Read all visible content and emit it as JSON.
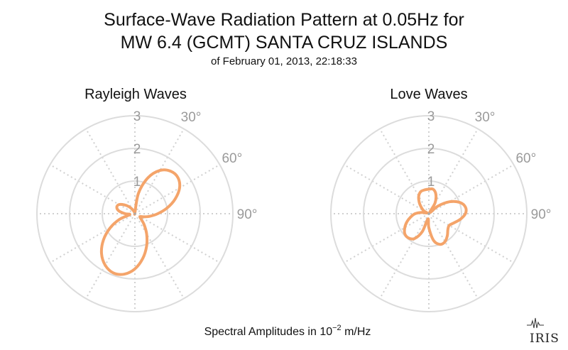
{
  "title_line1": "Surface-Wave Radiation Pattern at 0.05Hz for",
  "title_line2": "MW 6.4 (GCMT) SANTA CRUZ ISLANDS",
  "subtitle": "of February 01, 2013, 22:18:33",
  "footer": {
    "prefix": "Spectral Amplitudes in 10",
    "exponent": "−2",
    "suffix": " m/Hz"
  },
  "logo": "IRIS",
  "chart_data": [
    {
      "type": "polar-line",
      "title": "Rayleigh Waves",
      "r_ticks": [
        "1",
        "2",
        "3"
      ],
      "r_max": 3,
      "angle_labels": [
        "30°",
        "60°",
        "90°"
      ],
      "azimuth_deg": [
        0,
        10,
        20,
        30,
        40,
        50,
        60,
        70,
        80,
        90,
        100,
        110,
        120,
        130,
        140,
        150,
        160,
        170,
        180,
        190,
        200,
        210,
        220,
        230,
        240,
        250,
        260,
        270,
        280,
        290,
        300,
        310,
        320,
        330,
        340,
        350
      ],
      "amplitude": [
        0.03,
        0.64,
        1.17,
        1.53,
        1.7,
        1.72,
        1.58,
        1.31,
        1.0,
        0.7,
        0.46,
        0.28,
        0.18,
        0.24,
        0.44,
        0.72,
        1.05,
        1.39,
        1.69,
        1.88,
        1.93,
        1.82,
        1.59,
        1.26,
        0.88,
        0.5,
        0.16,
        0.3,
        0.5,
        0.59,
        0.56,
        0.42,
        0.28,
        0.15,
        0.06,
        0.02
      ],
      "color": "#f4a46a"
    },
    {
      "type": "polar-line",
      "title": "Love Waves",
      "r_ticks": [
        "1",
        "2",
        "3"
      ],
      "r_max": 3,
      "angle_labels": [
        "30°",
        "60°",
        "90°"
      ],
      "azimuth_deg": [
        0,
        10,
        20,
        30,
        40,
        50,
        60,
        70,
        80,
        90,
        100,
        110,
        120,
        130,
        140,
        150,
        160,
        170,
        180,
        190,
        200,
        210,
        220,
        230,
        240,
        250,
        260,
        270,
        280,
        290,
        300,
        310,
        320,
        330,
        340,
        350
      ],
      "amplitude": [
        0.75,
        0.76,
        0.63,
        0.38,
        0.04,
        0.36,
        0.73,
        1.01,
        1.14,
        1.12,
        0.98,
        0.82,
        0.72,
        0.76,
        0.88,
        0.99,
        1.0,
        0.83,
        0.43,
        0.16,
        0.58,
        0.88,
        0.97,
        0.96,
        0.85,
        0.71,
        0.56,
        0.42,
        0.22,
        0.06,
        0.18,
        0.3,
        0.46,
        0.62,
        0.72,
        0.74
      ],
      "color": "#f4a46a"
    }
  ]
}
